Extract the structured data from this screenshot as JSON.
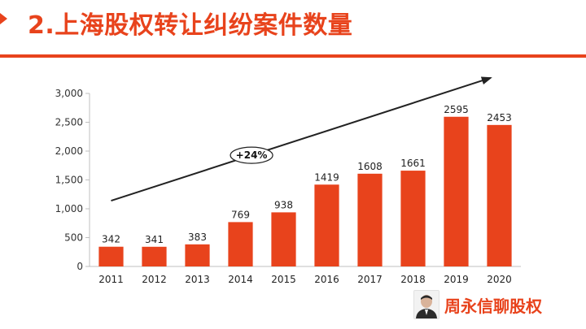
{
  "header": {
    "title": "2.上海股权转让纠纷案件数量",
    "accent_color": "#e8431c"
  },
  "chart_data": {
    "type": "bar",
    "categories": [
      "2011",
      "2012",
      "2013",
      "2014",
      "2015",
      "2016",
      "2017",
      "2018",
      "2019",
      "2020"
    ],
    "values": [
      342,
      341,
      383,
      769,
      938,
      1419,
      1608,
      1661,
      2595,
      2453
    ],
    "y_ticks": [
      "0",
      "500",
      "1,000",
      "1,500",
      "2,000",
      "2,500",
      "3,000"
    ],
    "ylim": [
      0,
      3000
    ],
    "grid": false,
    "bar_color": "#e8431c",
    "annotation": {
      "label": "+24%",
      "shape": "arrow-up-right"
    }
  },
  "brand": {
    "name": "周永信聊股权",
    "avatar_icon": "avatar-photo"
  }
}
